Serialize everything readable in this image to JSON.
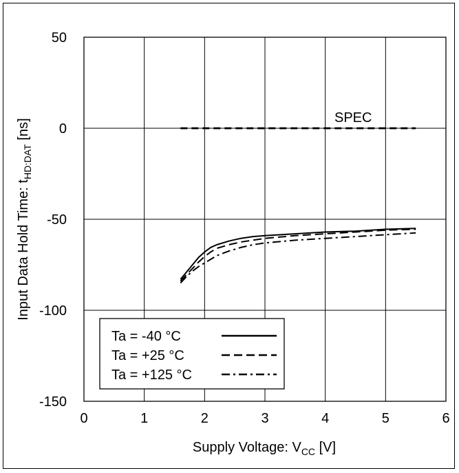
{
  "chart_data": {
    "type": "line",
    "title": "",
    "xlabel": {
      "prefix": "Supply Voltage: V",
      "sub": "CC",
      "suffix": " [V]"
    },
    "ylabel": {
      "prefix": "Input Data Hold Time: t",
      "sub": "HD:DAT",
      "suffix": " [ns]"
    },
    "xlim": [
      0,
      6
    ],
    "ylim": [
      -150,
      50
    ],
    "xticks": [
      "0",
      "1",
      "2",
      "3",
      "4",
      "5",
      "6"
    ],
    "yticks": [
      "-150",
      "-100",
      "-50",
      "0",
      "50"
    ],
    "grid": true,
    "legend_position": "bottom-left",
    "annotation": "SPEC",
    "spec": {
      "name": "SPEC",
      "x": [
        1.6,
        5.5
      ],
      "y": [
        0,
        0
      ],
      "dash": "dashed"
    },
    "series": [
      {
        "name": "Ta = -40 °C",
        "dash": "solid",
        "x": [
          1.6,
          1.7,
          1.8,
          1.9,
          2.0,
          2.1,
          2.2,
          2.4,
          2.6,
          2.8,
          3.0,
          3.5,
          4.0,
          4.5,
          5.0,
          5.5
        ],
        "y": [
          -83.0,
          -79.0,
          -75.0,
          -71.0,
          -68.0,
          -65.5,
          -64.0,
          -62.0,
          -60.5,
          -59.5,
          -59.0,
          -58.0,
          -57.0,
          -56.5,
          -55.5,
          -55.0
        ]
      },
      {
        "name": "Ta = +25 °C",
        "dash": "dashed",
        "x": [
          1.6,
          1.7,
          1.8,
          1.9,
          2.0,
          2.1,
          2.2,
          2.4,
          2.6,
          2.8,
          3.0,
          3.5,
          4.0,
          4.5,
          5.0,
          5.5
        ],
        "y": [
          -84.0,
          -80.5,
          -77.0,
          -73.5,
          -70.5,
          -68.0,
          -66.0,
          -64.0,
          -62.5,
          -61.5,
          -60.5,
          -59.0,
          -58.0,
          -57.0,
          -56.0,
          -55.5
        ]
      },
      {
        "name": "Ta = +125 °C",
        "dash": "dashdot",
        "x": [
          1.6,
          1.7,
          1.8,
          1.9,
          2.0,
          2.1,
          2.2,
          2.4,
          2.6,
          2.8,
          3.0,
          3.5,
          4.0,
          4.5,
          5.0,
          5.5
        ],
        "y": [
          -85.0,
          -81.5,
          -78.5,
          -76.0,
          -74.0,
          -72.0,
          -70.0,
          -67.5,
          -65.5,
          -64.0,
          -63.0,
          -61.5,
          -60.5,
          -59.5,
          -58.5,
          -57.5
        ]
      }
    ]
  }
}
